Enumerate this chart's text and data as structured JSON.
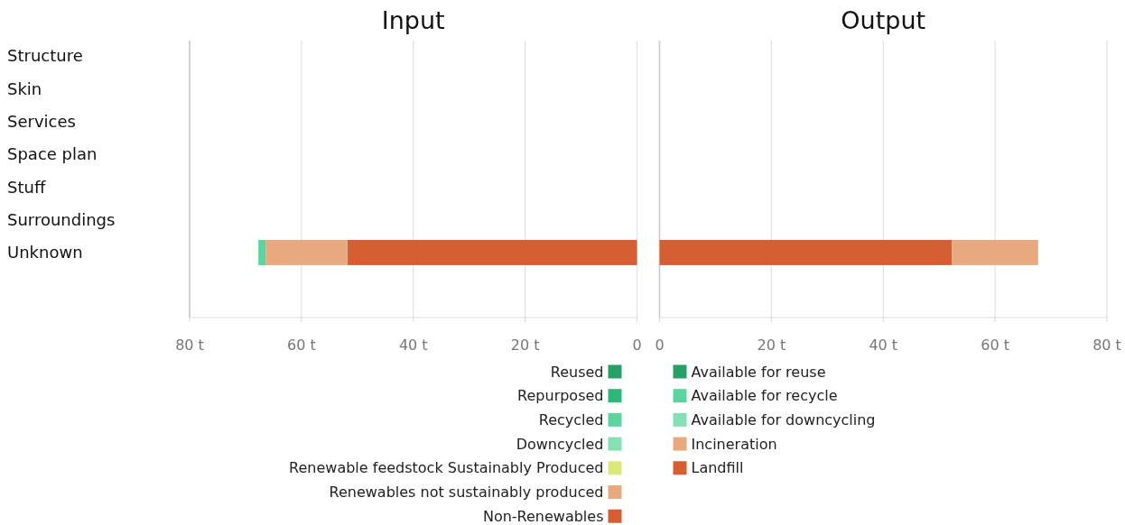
{
  "chart_data": [
    {
      "type": "bar",
      "title": "Input",
      "orientation": "horizontal",
      "stacked": true,
      "categories": [
        "Structure",
        "Skin",
        "Services",
        "Space plan",
        "Stuff",
        "Surroundings",
        "Unknown"
      ],
      "series": [
        {
          "name": "Non-Renewables",
          "color": "#d55f33",
          "values": [
            null,
            null,
            null,
            null,
            null,
            null,
            51.8
          ]
        },
        {
          "name": "Renewables not sustainably produced",
          "color": "#e8a97e",
          "values": [
            null,
            null,
            null,
            null,
            null,
            null,
            14.6
          ]
        },
        {
          "name": "Renewable feedstock Sustainably Produced",
          "color": "#dbe97a",
          "values": [
            null,
            null,
            null,
            null,
            null,
            null,
            null
          ]
        },
        {
          "name": "Downcycled",
          "color": "#86e0b4",
          "values": [
            null,
            null,
            null,
            null,
            null,
            null,
            null
          ]
        },
        {
          "name": "Recycled",
          "color": "#5dd39e",
          "values": [
            null,
            null,
            null,
            null,
            null,
            null,
            1.3
          ]
        },
        {
          "name": "Repurposed",
          "color": "#2db87a",
          "values": [
            null,
            null,
            null,
            null,
            null,
            null,
            null
          ]
        },
        {
          "name": "Reused",
          "color": "#27a068",
          "values": [
            null,
            null,
            null,
            null,
            null,
            null,
            null
          ]
        }
      ],
      "xlim": [
        80,
        0
      ],
      "xticks": [
        {
          "value": 80,
          "label": "80 t"
        },
        {
          "value": 60,
          "label": "60 t"
        },
        {
          "value": 40,
          "label": "40 t"
        },
        {
          "value": 20,
          "label": "20 t"
        },
        0
      ],
      "grid": "x",
      "legend": "bottom"
    },
    {
      "type": "bar",
      "title": "Output",
      "orientation": "horizontal",
      "stacked": true,
      "categories": [
        "Structure",
        "Skin",
        "Services",
        "Space plan",
        "Stuff",
        "Surroundings",
        "Unknown"
      ],
      "series": [
        {
          "name": "Landfill",
          "color": "#d55f33",
          "values": [
            null,
            null,
            null,
            null,
            null,
            null,
            52.3
          ]
        },
        {
          "name": "Incineration",
          "color": "#e8a97e",
          "values": [
            null,
            null,
            null,
            null,
            null,
            null,
            15.4
          ]
        },
        {
          "name": "Available for downcycling",
          "color": "#86e0b4",
          "values": [
            null,
            null,
            null,
            null,
            null,
            null,
            null
          ]
        },
        {
          "name": "Available for recycle",
          "color": "#5dd39e",
          "values": [
            null,
            null,
            null,
            null,
            null,
            null,
            null
          ]
        },
        {
          "name": "Available for reuse",
          "color": "#27a068",
          "values": [
            null,
            null,
            null,
            null,
            null,
            null,
            null
          ]
        }
      ],
      "xlim": [
        0,
        80
      ],
      "xticks": [
        0,
        {
          "value": 20,
          "label": "20 t"
        },
        {
          "value": 40,
          "label": "40 t"
        },
        {
          "value": 60,
          "label": "60 t"
        },
        {
          "value": 80,
          "label": "80 t"
        }
      ],
      "grid": "x",
      "legend": "bottom",
      "tick_labels": "x"
    }
  ]
}
